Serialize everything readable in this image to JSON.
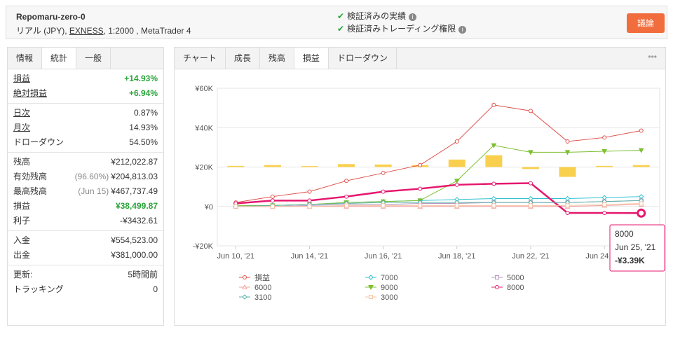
{
  "header": {
    "title": "Repomaru-zero-0",
    "subtitle_prefix": "リアル (JPY), ",
    "broker": "EXNESS",
    "subtitle_suffix": ", 1:2000 , MetaTrader 4",
    "verified": [
      "検証済みの実績",
      "検証済みトレーディング権限"
    ],
    "button": "議論"
  },
  "stats": {
    "tabs": [
      "情報",
      "統計",
      "一般"
    ],
    "active_tab": 1,
    "groups": [
      {
        "rows": [
          {
            "label": "損益",
            "value": "+14.93%",
            "highlight": "green",
            "underline": true
          },
          {
            "label": "絶対損益",
            "value": "+6.94%",
            "highlight": "green",
            "underline": true
          }
        ]
      },
      {
        "rows": [
          {
            "label": "日次",
            "value": "0.87%",
            "underline": true
          },
          {
            "label": "月次",
            "value": "14.93%",
            "underline": true
          },
          {
            "label": "ドローダウン",
            "value": "54.50%"
          }
        ]
      },
      {
        "rows": [
          {
            "label": "残高",
            "value": "¥212,022.87"
          },
          {
            "label": "有効残高",
            "note": "(96.60%)",
            "value": "¥204,813.03"
          },
          {
            "label": "最高残高",
            "note": "(Jun 15)",
            "value": "¥467,737.49"
          },
          {
            "label": "損益",
            "value": "¥38,499.87",
            "highlight": "green"
          },
          {
            "label": "利子",
            "value": "-¥3432.61"
          }
        ]
      },
      {
        "rows": [
          {
            "label": "入金",
            "value": "¥554,523.00"
          },
          {
            "label": "出金",
            "value": "¥381,000.00"
          }
        ]
      },
      {
        "rows": [
          {
            "label": "更新:",
            "value": "5時間前"
          },
          {
            "label": "トラッキング",
            "value": "0"
          }
        ]
      }
    ]
  },
  "chart_tabs": {
    "tabs": [
      "チャート",
      "成長",
      "残高",
      "損益",
      "ドローダウン"
    ],
    "active_tab": 3,
    "menu": "•••"
  },
  "chart_data": {
    "type": "line",
    "categories": [
      "Jun 10, '21",
      null,
      "Jun 14, '21",
      null,
      "Jun 16, '21",
      null,
      "Jun 18, '21",
      null,
      "Jun 22, '21",
      null,
      "Jun 24, '21",
      null
    ],
    "ylim": [
      -20000,
      60000
    ],
    "yticks": [
      {
        "value": -20000,
        "label": "-¥20K"
      },
      {
        "value": 0,
        "label": "¥0"
      },
      {
        "value": 20000,
        "label": "¥20K"
      },
      {
        "value": 40000,
        "label": "¥40K"
      },
      {
        "value": 60000,
        "label": "¥60K"
      }
    ],
    "grid": true,
    "bars": {
      "color": "#f9d04e",
      "values": [
        20600,
        21000,
        20500,
        21500,
        21300,
        21000,
        23800,
        26000,
        19000,
        15000,
        20600,
        21000
      ]
    },
    "series": [
      {
        "name": "損益",
        "color": "#e0504a",
        "marker": "circle",
        "values": [
          2000,
          5000,
          7500,
          13000,
          17000,
          21000,
          33000,
          51500,
          48500,
          33000,
          35000,
          38500
        ]
      },
      {
        "name": "7000",
        "color": "#2fc1d0",
        "marker": "diamond",
        "values": [
          0,
          500,
          1000,
          2000,
          2500,
          3000,
          3500,
          4000,
          4000,
          4000,
          4500,
          5000
        ]
      },
      {
        "name": "5000",
        "color": "#b597c0",
        "marker": "square",
        "values": [
          0,
          0,
          500,
          1000,
          1000,
          1500,
          1500,
          2000,
          2000,
          2000,
          2500,
          3000
        ]
      },
      {
        "name": "6000",
        "color": "#f0a09a",
        "marker": "triangle",
        "values": [
          0,
          0,
          0,
          0,
          0,
          0,
          0,
          0,
          0,
          0,
          500,
          1000
        ]
      },
      {
        "name": "9000",
        "color": "#7cbf2e",
        "marker": "triangle-down",
        "values": [
          500,
          500,
          1000,
          2000,
          2500,
          3000,
          13000,
          31000,
          27500,
          27500,
          28000,
          28500
        ]
      },
      {
        "name": "8000",
        "color": "#e5176e",
        "marker": "circle",
        "width": 2.5,
        "values": [
          1500,
          3000,
          3000,
          5000,
          7500,
          9000,
          11000,
          11500,
          11800,
          -3300,
          -3300,
          -3390
        ]
      },
      {
        "name": "3100",
        "color": "#5bb3a8",
        "marker": "diamond",
        "values": [
          0,
          500,
          1000,
          1500,
          2000,
          2000,
          2000,
          2000,
          2000,
          2000,
          2500,
          3000
        ]
      },
      {
        "name": "3000",
        "color": "#f7c3a6",
        "marker": "square",
        "values": [
          0,
          0,
          0,
          500,
          500,
          500,
          500,
          500,
          500,
          500,
          1000,
          1500
        ]
      }
    ],
    "tooltip": {
      "series": "8000",
      "date": "Jun 25, '21",
      "value_label": "-¥3.39K"
    }
  }
}
